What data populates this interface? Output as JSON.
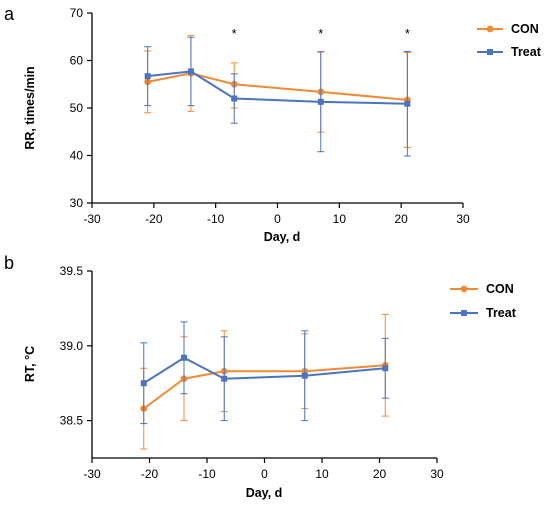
{
  "colors": {
    "con": "#f28a34",
    "treat": "#4a74c1",
    "axis": "#000000"
  },
  "chart_data": [
    {
      "panel_label": "a",
      "type": "line",
      "xlabel": "Day,  d",
      "ylabel": "RR,  times/min",
      "xlim": [
        -30,
        30
      ],
      "ylim": [
        30,
        70
      ],
      "x_ticks": [
        "-30",
        "-20",
        "-10",
        "0",
        "10",
        "20",
        "30"
      ],
      "y_ticks": [
        "30",
        "40",
        "50",
        "60",
        "70"
      ],
      "x_tick_values": [
        -30,
        -20,
        -10,
        0,
        10,
        20,
        30
      ],
      "y_tick_values": [
        30,
        40,
        50,
        60,
        70
      ],
      "grid": false,
      "legend_position": "top-right",
      "series": [
        {
          "name": "CON",
          "color": "#f28a34",
          "marker": "circle",
          "x": [
            -21,
            -14,
            -7,
            7,
            21
          ],
          "y": [
            55.5,
            57.3,
            55.0,
            53.4,
            51.7
          ],
          "err_low": [
            6.5,
            8.0,
            5.0,
            8.5,
            10.0
          ],
          "err_high": [
            6.5,
            8.0,
            4.5,
            8.5,
            10.0
          ]
        },
        {
          "name": "Treat",
          "color": "#4a74c1",
          "marker": "square",
          "x": [
            -21,
            -14,
            -7,
            7,
            21
          ],
          "y": [
            56.7,
            57.7,
            52.0,
            51.3,
            50.9
          ],
          "err_low": [
            6.2,
            7.2,
            5.2,
            10.5,
            11.0
          ],
          "err_high": [
            6.2,
            7.2,
            5.2,
            10.5,
            11.0
          ]
        }
      ],
      "annotations": [
        {
          "text": "*",
          "x": -7
        },
        {
          "text": "*",
          "x": 7
        },
        {
          "text": "*",
          "x": 21
        }
      ]
    },
    {
      "panel_label": "b",
      "type": "line",
      "xlabel": "Day,  d",
      "ylabel": "RT,  °C",
      "xlim": [
        -30,
        30
      ],
      "ylim": [
        38.25,
        39.5
      ],
      "x_ticks": [
        "-30",
        "-20",
        "-10",
        "0",
        "10",
        "20",
        "30"
      ],
      "y_ticks": [
        "38.5",
        "39.0",
        "39.5"
      ],
      "x_tick_values": [
        -30,
        -20,
        -10,
        0,
        10,
        20,
        30
      ],
      "y_tick_values": [
        38.5,
        39.0,
        39.5
      ],
      "grid": false,
      "legend_position": "top-right",
      "series": [
        {
          "name": "CON",
          "color": "#f28a34",
          "marker": "circle",
          "x": [
            -21,
            -14,
            -7,
            7,
            21
          ],
          "y": [
            38.58,
            38.78,
            38.83,
            38.83,
            38.87
          ],
          "err_low": [
            0.27,
            0.28,
            0.27,
            0.25,
            0.34
          ],
          "err_high": [
            0.27,
            0.28,
            0.27,
            0.25,
            0.34
          ]
        },
        {
          "name": "Treat",
          "color": "#4a74c1",
          "marker": "square",
          "x": [
            -21,
            -14,
            -7,
            7,
            21
          ],
          "y": [
            38.75,
            38.92,
            38.78,
            38.8,
            38.85
          ],
          "err_low": [
            0.27,
            0.24,
            0.28,
            0.3,
            0.2
          ],
          "err_high": [
            0.27,
            0.24,
            0.28,
            0.3,
            0.2
          ]
        }
      ],
      "annotations": []
    }
  ]
}
